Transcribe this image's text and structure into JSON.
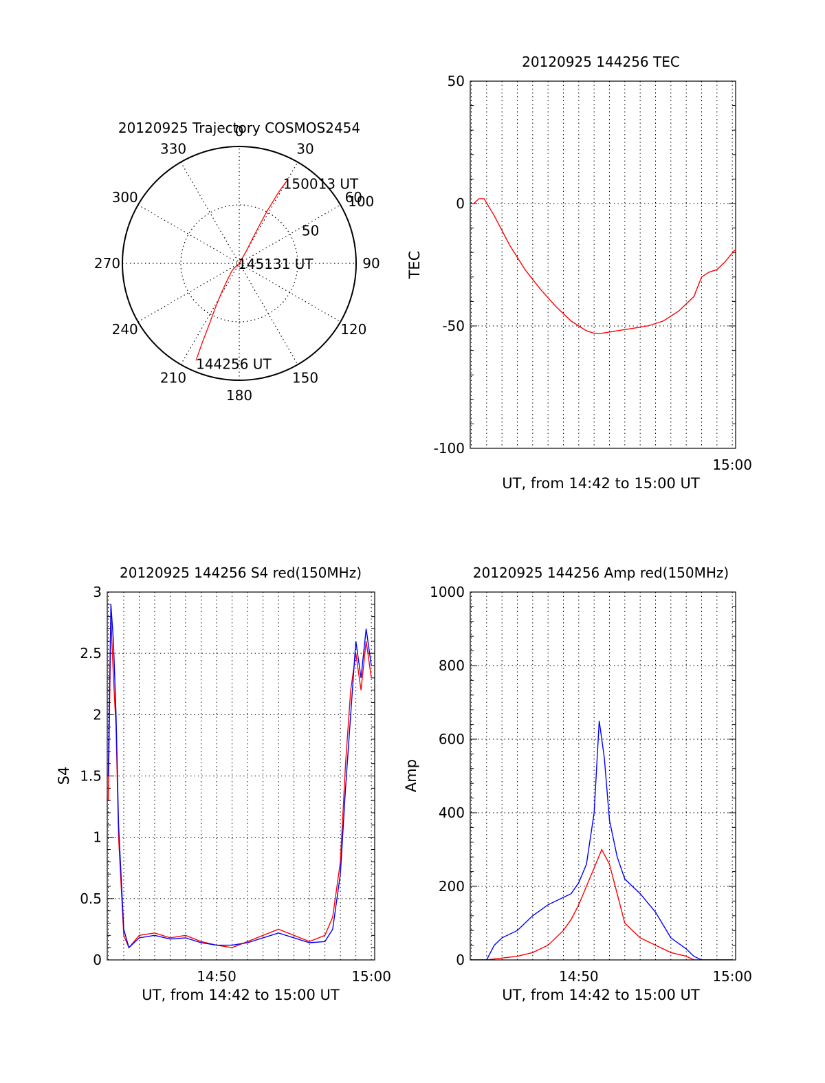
{
  "chart_data": [
    {
      "type": "polar",
      "title": "20120925 Trajectory COSMOS2454",
      "angle_labels": [
        "0",
        "30",
        "60",
        "90",
        "120",
        "150",
        "180",
        "210",
        "240",
        "270",
        "300",
        "330"
      ],
      "radius_labels": [
        "50",
        "100"
      ],
      "rlim": [
        0,
        100
      ],
      "track": {
        "color": "#ff0000",
        "points": [
          {
            "az": 204,
            "zen": 91
          },
          {
            "az": 205,
            "zen": 75
          },
          {
            "az": 206,
            "zen": 60
          },
          {
            "az": 208,
            "zen": 45
          },
          {
            "az": 211,
            "zen": 30
          },
          {
            "az": 216,
            "zen": 17
          },
          {
            "az": 226,
            "zen": 8
          },
          {
            "az": 90,
            "zen": 0
          },
          {
            "az": 30,
            "zen": 12
          },
          {
            "az": 28,
            "zen": 30
          },
          {
            "az": 28,
            "zen": 50
          },
          {
            "az": 29,
            "zen": 70
          },
          {
            "az": 30,
            "zen": 82
          }
        ]
      },
      "annotations": [
        {
          "text": "150013 UT",
          "az": 30,
          "zen": 82
        },
        {
          "text": "145131 UT",
          "az": 90,
          "zen": 0
        },
        {
          "text": "144256 UT",
          "az": 204,
          "zen": 91
        }
      ],
      "grid": true
    },
    {
      "type": "line",
      "title": "20120925 144256 TEC",
      "xlabel": "UT, from 14:42 to 15:00 UT",
      "ylabel": "TEC",
      "xlim": [
        "14:42:56",
        "15:00:13"
      ],
      "ylim": [
        -100,
        50
      ],
      "yticks": [
        "-100",
        "-50",
        "0",
        "50"
      ],
      "xticks": [
        "15:00"
      ],
      "grid": true,
      "series": [
        {
          "color": "#ff0000",
          "x": [
            "14:43:10",
            "14:43:30",
            "14:43:50",
            "14:44:30",
            "14:45:30",
            "14:46:30",
            "14:47:30",
            "14:48:30",
            "14:49:30",
            "14:50:30",
            "14:51:00",
            "14:51:30",
            "14:52:30",
            "14:53:30",
            "14:54:30",
            "14:55:30",
            "14:56:30",
            "14:57:30",
            "14:58:00",
            "14:58:30",
            "14:59:00",
            "14:59:30",
            "15:00:10"
          ],
          "y": [
            0,
            2,
            2,
            -5,
            -17,
            -27,
            -35,
            -42,
            -48,
            -52,
            -53,
            -53,
            -52,
            -51,
            -50,
            -48,
            -44,
            -38,
            -30,
            -28,
            -27,
            -24,
            -19
          ]
        }
      ]
    },
    {
      "type": "line",
      "title": "20120925 144256 S4 red(150MHz)",
      "xlabel": "UT, from 14:42 to 15:00 UT",
      "ylabel": "S4",
      "xlim": [
        "14:42:56",
        "15:00:13"
      ],
      "ylim": [
        0,
        3
      ],
      "yticks": [
        "0",
        "0.5",
        "1",
        "1.5",
        "2",
        "2.5",
        "3"
      ],
      "xticks": [
        "14:50",
        "15:00"
      ],
      "grid": true,
      "series": [
        {
          "color": "#ff0000",
          "x": [
            "14:43:00",
            "14:43:10",
            "14:43:20",
            "14:43:30",
            "14:43:40",
            "14:44:00",
            "14:44:20",
            "14:45:00",
            "14:46:00",
            "14:47:00",
            "14:48:00",
            "14:49:00",
            "14:50:00",
            "14:51:00",
            "14:52:00",
            "14:53:00",
            "14:54:00",
            "14:55:00",
            "14:56:00",
            "14:57:00",
            "14:57:30",
            "14:58:00",
            "14:58:20",
            "14:58:40",
            "14:59:00",
            "14:59:20",
            "14:59:40",
            "15:00:00"
          ],
          "y": [
            1.3,
            2.8,
            2.3,
            1.9,
            1.0,
            0.2,
            0.1,
            0.2,
            0.22,
            0.18,
            0.2,
            0.15,
            0.12,
            0.1,
            0.15,
            0.2,
            0.25,
            0.2,
            0.15,
            0.2,
            0.35,
            0.8,
            1.6,
            2.2,
            2.5,
            2.2,
            2.6,
            2.3
          ]
        },
        {
          "color": "#0000ff",
          "x": [
            "14:43:00",
            "14:43:10",
            "14:43:20",
            "14:43:30",
            "14:43:40",
            "14:44:00",
            "14:44:20",
            "14:45:00",
            "14:46:00",
            "14:47:00",
            "14:48:00",
            "14:49:00",
            "14:50:00",
            "14:51:00",
            "14:52:00",
            "14:53:00",
            "14:54:00",
            "14:55:00",
            "14:56:00",
            "14:57:00",
            "14:57:30",
            "14:58:00",
            "14:58:20",
            "14:58:40",
            "14:59:00",
            "14:59:20",
            "14:59:40",
            "15:00:00"
          ],
          "y": [
            1.5,
            2.9,
            2.6,
            2.0,
            1.1,
            0.25,
            0.1,
            0.18,
            0.2,
            0.17,
            0.18,
            0.14,
            0.12,
            0.12,
            0.14,
            0.18,
            0.22,
            0.18,
            0.14,
            0.15,
            0.25,
            0.7,
            1.4,
            2.0,
            2.6,
            2.3,
            2.7,
            2.4
          ]
        }
      ]
    },
    {
      "type": "line",
      "title": "20120925 144256 Amp red(150MHz)",
      "xlabel": "UT, from 14:42 to 15:00 UT",
      "ylabel": "Amp",
      "xlim": [
        "14:42:56",
        "15:00:13"
      ],
      "ylim": [
        0,
        1000
      ],
      "yticks": [
        "0",
        "200",
        "400",
        "600",
        "800",
        "1000"
      ],
      "xticks": [
        "14:50",
        "15:00"
      ],
      "grid": true,
      "series": [
        {
          "color": "#ff0000",
          "x": [
            "14:43:00",
            "14:44:00",
            "14:45:00",
            "14:46:00",
            "14:47:00",
            "14:48:00",
            "14:49:00",
            "14:49:30",
            "14:50:00",
            "14:50:30",
            "14:51:00",
            "14:51:30",
            "14:52:00",
            "14:52:30",
            "14:53:00",
            "14:54:00",
            "14:55:00",
            "14:56:00",
            "14:57:00",
            "14:57:30",
            "14:58:00",
            "15:00:00"
          ],
          "y": [
            0,
            0,
            5,
            10,
            20,
            40,
            80,
            110,
            150,
            200,
            250,
            300,
            260,
            180,
            100,
            60,
            40,
            20,
            10,
            0,
            0,
            0
          ]
        },
        {
          "color": "#0000ff",
          "x": [
            "14:43:00",
            "14:44:00",
            "14:44:30",
            "14:45:00",
            "14:46:00",
            "14:47:00",
            "14:48:00",
            "14:49:00",
            "14:49:30",
            "14:50:00",
            "14:50:30",
            "14:51:00",
            "14:51:20",
            "14:51:40",
            "14:52:00",
            "14:52:30",
            "14:53:00",
            "14:54:00",
            "14:55:00",
            "14:56:00",
            "14:57:00",
            "14:57:30",
            "14:58:00",
            "15:00:00"
          ],
          "y": [
            0,
            0,
            40,
            60,
            80,
            120,
            150,
            170,
            180,
            210,
            260,
            400,
            650,
            550,
            380,
            280,
            220,
            180,
            130,
            60,
            30,
            10,
            0,
            0
          ]
        }
      ]
    }
  ]
}
